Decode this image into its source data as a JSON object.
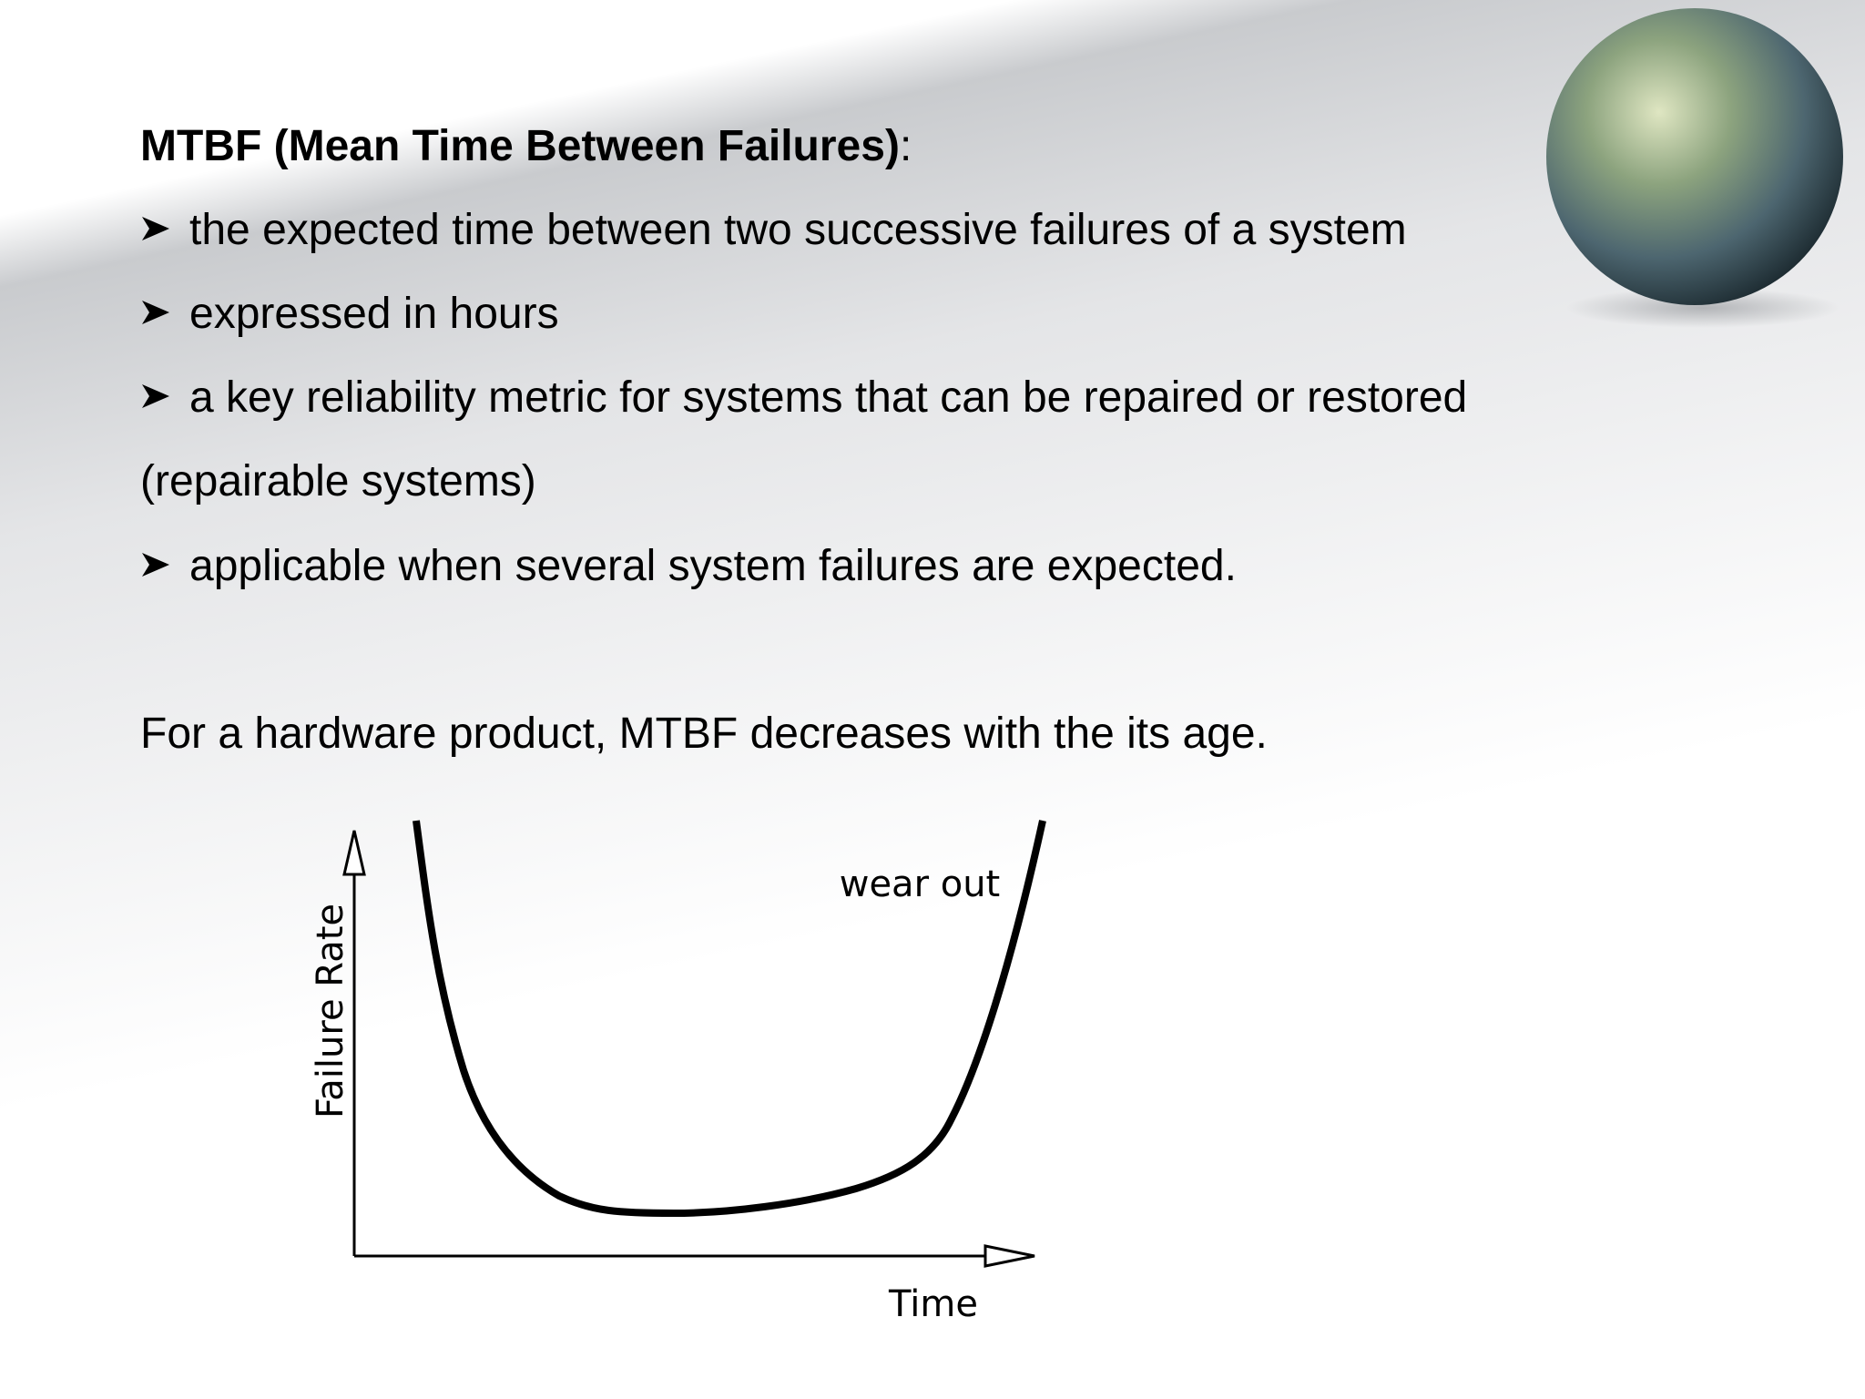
{
  "heading": {
    "term": "MTBF (Mean Time Between Failures)",
    "punct": ":"
  },
  "bullets": [
    "the expected time between two successive failures of a system",
    "expressed in hours",
    "a key reliability metric for systems that can be repaired or restored (repairable systems)",
    "applicable when several system failures are expected."
  ],
  "paragraph": "For a hardware product, MTBF decreases with the its age.",
  "diagram": {
    "y_label": "Failure Rate",
    "x_label": "Time",
    "annotation": "wear out"
  }
}
